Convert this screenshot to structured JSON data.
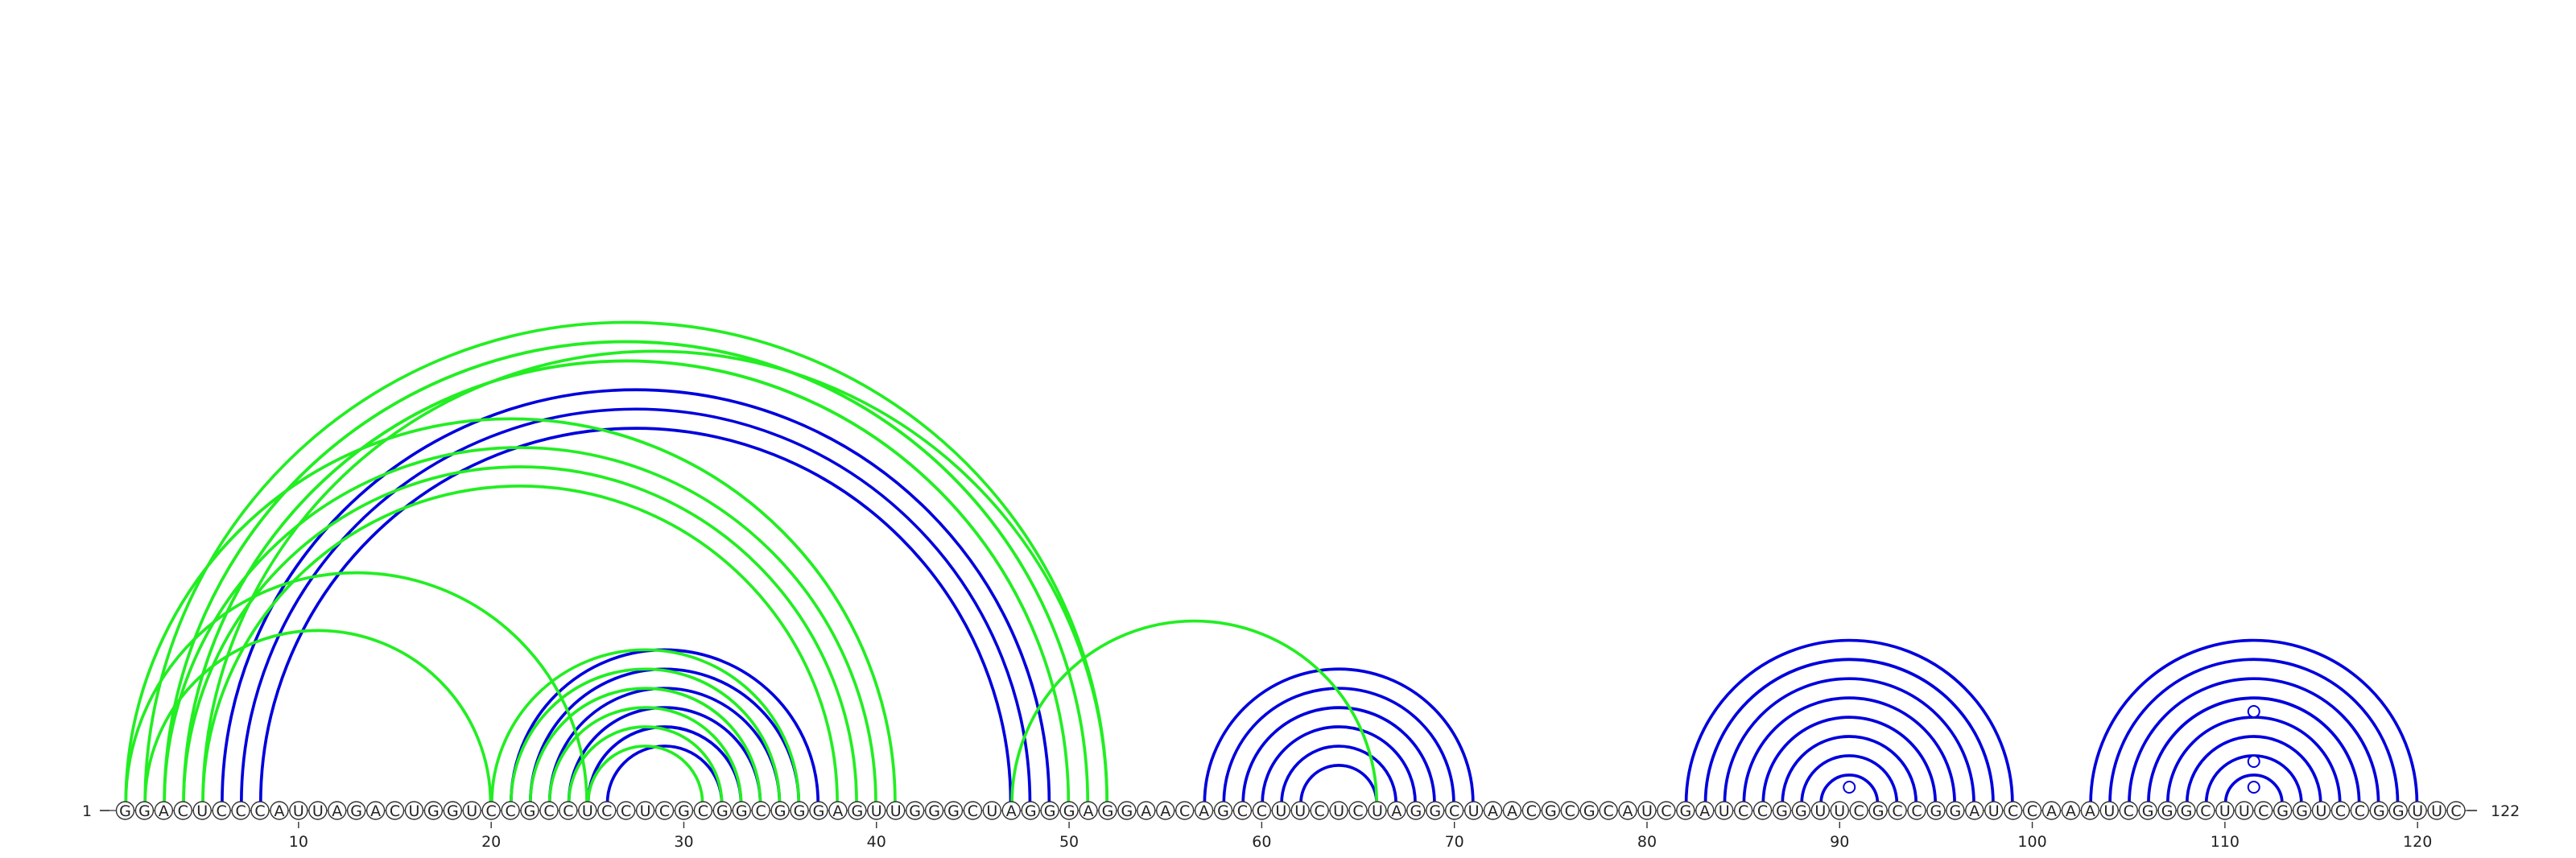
{
  "sequence": "GGACUCCCAUUAGACUGGUCCGCCUCCUCGCGGCGGGAGUUGGGCUAGGGAGGAACAGCCUUCUCUAGGCUAACGCGCAUCGAUCCGGUUCGCCGGAUCCAAAUCGGGCUUCGGUCCGGUUC",
  "start_label": "1",
  "end_label": "122",
  "ticks": [
    10,
    20,
    30,
    40,
    50,
    60,
    70,
    80,
    90,
    100,
    110,
    120
  ],
  "colors": {
    "blue": "#0000dd",
    "green": "#22ee22"
  },
  "arc_groups": [
    {
      "color": "blue",
      "pairs": [
        [
          6,
          49
        ],
        [
          7,
          48
        ],
        [
          8,
          47
        ],
        [
          21,
          37
        ],
        [
          22,
          36
        ],
        [
          23,
          35
        ],
        [
          24,
          34
        ],
        [
          25,
          33
        ],
        [
          26,
          32
        ],
        [
          57,
          71
        ],
        [
          58,
          70
        ],
        [
          59,
          69
        ],
        [
          60,
          68
        ],
        [
          61,
          67
        ],
        [
          62,
          66
        ],
        [
          82,
          99
        ],
        [
          83,
          98
        ],
        [
          84,
          97
        ],
        [
          85,
          96
        ],
        [
          86,
          95
        ],
        [
          87,
          94
        ],
        [
          88,
          93
        ],
        [
          89,
          92
        ],
        [
          103,
          120
        ],
        [
          104,
          119
        ],
        [
          105,
          118
        ],
        [
          106,
          117
        ],
        [
          107,
          116
        ],
        [
          108,
          115
        ],
        [
          109,
          114
        ],
        [
          110,
          113
        ]
      ]
    },
    {
      "color": "green",
      "pairs": [
        [
          2,
          52
        ],
        [
          3,
          51
        ],
        [
          4,
          50
        ],
        [
          5,
          52
        ],
        [
          1,
          41
        ],
        [
          3,
          40
        ],
        [
          4,
          39
        ],
        [
          5,
          38
        ],
        [
          20,
          36
        ],
        [
          21,
          35
        ],
        [
          22,
          34
        ],
        [
          23,
          33
        ],
        [
          24,
          32
        ],
        [
          25,
          31
        ],
        [
          2,
          20
        ],
        [
          1,
          25
        ],
        [
          47,
          66
        ]
      ]
    }
  ],
  "markers": [
    91,
    111,
    112,
    113
  ]
}
